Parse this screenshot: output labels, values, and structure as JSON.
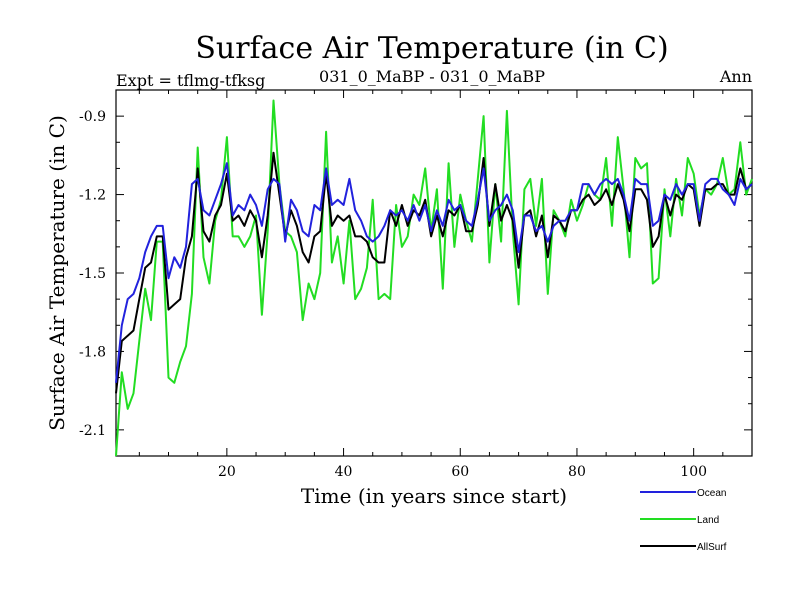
{
  "chart_data": {
    "type": "line",
    "title": "Surface Air Temperature (in C)",
    "subtitle_left": "Expt = tflmg-tfksg",
    "subtitle_center": "031_0_MaBP - 031_0_MaBP",
    "subtitle_right": "Ann",
    "xlabel": "Time (in years since start)",
    "ylabel": "Surface Air Temperature (in C)",
    "xlim": [
      1,
      110
    ],
    "ylim": [
      -2.2,
      -0.8
    ],
    "x_ticks": [
      20,
      40,
      60,
      80,
      100
    ],
    "x_tick_labels": [
      "20",
      "40",
      "60",
      "80",
      "100"
    ],
    "y_ticks": [
      -2.1,
      -1.8,
      -1.5,
      -1.2,
      -0.9
    ],
    "y_tick_labels": [
      "-2.1",
      "-1.8",
      "-1.5",
      "-1.2",
      "-0.9"
    ],
    "x_start": 1,
    "legend_position": "bottom-right",
    "series": [
      {
        "name": "Land",
        "color": "#22dd22",
        "values": [
          -2.2,
          -1.88,
          -2.02,
          -1.96,
          -1.76,
          -1.56,
          -1.68,
          -1.38,
          -1.38,
          -1.9,
          -1.92,
          -1.84,
          -1.78,
          -1.58,
          -1.02,
          -1.44,
          -1.54,
          -1.3,
          -1.22,
          -0.98,
          -1.36,
          -1.36,
          -1.4,
          -1.36,
          -1.28,
          -1.66,
          -1.34,
          -0.84,
          -1.16,
          -1.34,
          -1.36,
          -1.42,
          -1.68,
          -1.54,
          -1.6,
          -1.5,
          -0.96,
          -1.46,
          -1.36,
          -1.54,
          -1.3,
          -1.6,
          -1.56,
          -1.48,
          -1.22,
          -1.6,
          -1.58,
          -1.6,
          -1.24,
          -1.4,
          -1.36,
          -1.2,
          -1.24,
          -1.1,
          -1.34,
          -1.18,
          -1.56,
          -1.08,
          -1.4,
          -1.2,
          -1.3,
          -1.38,
          -1.14,
          -0.9,
          -1.46,
          -1.16,
          -1.38,
          -0.88,
          -1.34,
          -1.62,
          -1.18,
          -1.14,
          -1.32,
          -1.14,
          -1.58,
          -1.26,
          -1.3,
          -1.36,
          -1.22,
          -1.3,
          -1.24,
          -1.16,
          -1.2,
          -1.22,
          -1.06,
          -1.32,
          -0.98,
          -1.18,
          -1.44,
          -1.06,
          -1.1,
          -1.08,
          -1.54,
          -1.52,
          -1.18,
          -1.36,
          -1.14,
          -1.28,
          -1.06,
          -1.12,
          -1.28,
          -1.18,
          -1.2,
          -1.16,
          -1.06,
          -1.2,
          -1.18,
          -1.0,
          -1.2,
          -1.14
        ]
      },
      {
        "name": "AllSurf",
        "color": "#000000",
        "values": [
          -1.96,
          -1.76,
          -1.74,
          -1.72,
          -1.6,
          -1.48,
          -1.46,
          -1.36,
          -1.36,
          -1.64,
          -1.62,
          -1.6,
          -1.44,
          -1.36,
          -1.1,
          -1.34,
          -1.38,
          -1.28,
          -1.24,
          -1.12,
          -1.3,
          -1.28,
          -1.32,
          -1.26,
          -1.3,
          -1.44,
          -1.28,
          -1.04,
          -1.2,
          -1.36,
          -1.26,
          -1.32,
          -1.42,
          -1.46,
          -1.36,
          -1.34,
          -1.12,
          -1.32,
          -1.28,
          -1.3,
          -1.28,
          -1.36,
          -1.36,
          -1.38,
          -1.44,
          -1.46,
          -1.46,
          -1.26,
          -1.32,
          -1.24,
          -1.32,
          -1.26,
          -1.28,
          -1.22,
          -1.36,
          -1.28,
          -1.36,
          -1.26,
          -1.28,
          -1.24,
          -1.34,
          -1.34,
          -1.24,
          -1.06,
          -1.32,
          -1.16,
          -1.3,
          -1.24,
          -1.3,
          -1.48,
          -1.28,
          -1.26,
          -1.36,
          -1.28,
          -1.44,
          -1.28,
          -1.3,
          -1.34,
          -1.26,
          -1.26,
          -1.22,
          -1.2,
          -1.24,
          -1.22,
          -1.18,
          -1.24,
          -1.16,
          -1.22,
          -1.34,
          -1.18,
          -1.18,
          -1.22,
          -1.4,
          -1.36,
          -1.2,
          -1.28,
          -1.2,
          -1.22,
          -1.16,
          -1.18,
          -1.32,
          -1.18,
          -1.18,
          -1.16,
          -1.16,
          -1.2,
          -1.2,
          -1.1,
          -1.18,
          -1.16
        ]
      },
      {
        "name": "Ocean",
        "color": "#2222dd",
        "values": [
          -1.92,
          -1.7,
          -1.6,
          -1.58,
          -1.52,
          -1.42,
          -1.36,
          -1.32,
          -1.32,
          -1.52,
          -1.44,
          -1.48,
          -1.4,
          -1.16,
          -1.14,
          -1.26,
          -1.28,
          -1.22,
          -1.16,
          -1.08,
          -1.28,
          -1.24,
          -1.26,
          -1.2,
          -1.24,
          -1.32,
          -1.18,
          -1.14,
          -1.16,
          -1.38,
          -1.22,
          -1.26,
          -1.34,
          -1.36,
          -1.24,
          -1.26,
          -1.1,
          -1.24,
          -1.22,
          -1.24,
          -1.14,
          -1.26,
          -1.3,
          -1.36,
          -1.38,
          -1.36,
          -1.32,
          -1.26,
          -1.28,
          -1.26,
          -1.3,
          -1.24,
          -1.3,
          -1.24,
          -1.34,
          -1.26,
          -1.32,
          -1.22,
          -1.26,
          -1.24,
          -1.3,
          -1.32,
          -1.22,
          -1.1,
          -1.3,
          -1.26,
          -1.24,
          -1.2,
          -1.26,
          -1.42,
          -1.28,
          -1.28,
          -1.34,
          -1.32,
          -1.38,
          -1.32,
          -1.3,
          -1.3,
          -1.26,
          -1.26,
          -1.16,
          -1.16,
          -1.2,
          -1.16,
          -1.14,
          -1.16,
          -1.14,
          -1.2,
          -1.3,
          -1.14,
          -1.16,
          -1.16,
          -1.32,
          -1.3,
          -1.2,
          -1.22,
          -1.16,
          -1.2,
          -1.16,
          -1.16,
          -1.3,
          -1.16,
          -1.14,
          -1.14,
          -1.18,
          -1.2,
          -1.24,
          -1.14,
          -1.18,
          -1.16
        ]
      }
    ],
    "legend": [
      {
        "name": "Ocean",
        "color": "#2222dd"
      },
      {
        "name": "Land",
        "color": "#22dd22"
      },
      {
        "name": "AllSurf",
        "color": "#000000"
      }
    ]
  }
}
